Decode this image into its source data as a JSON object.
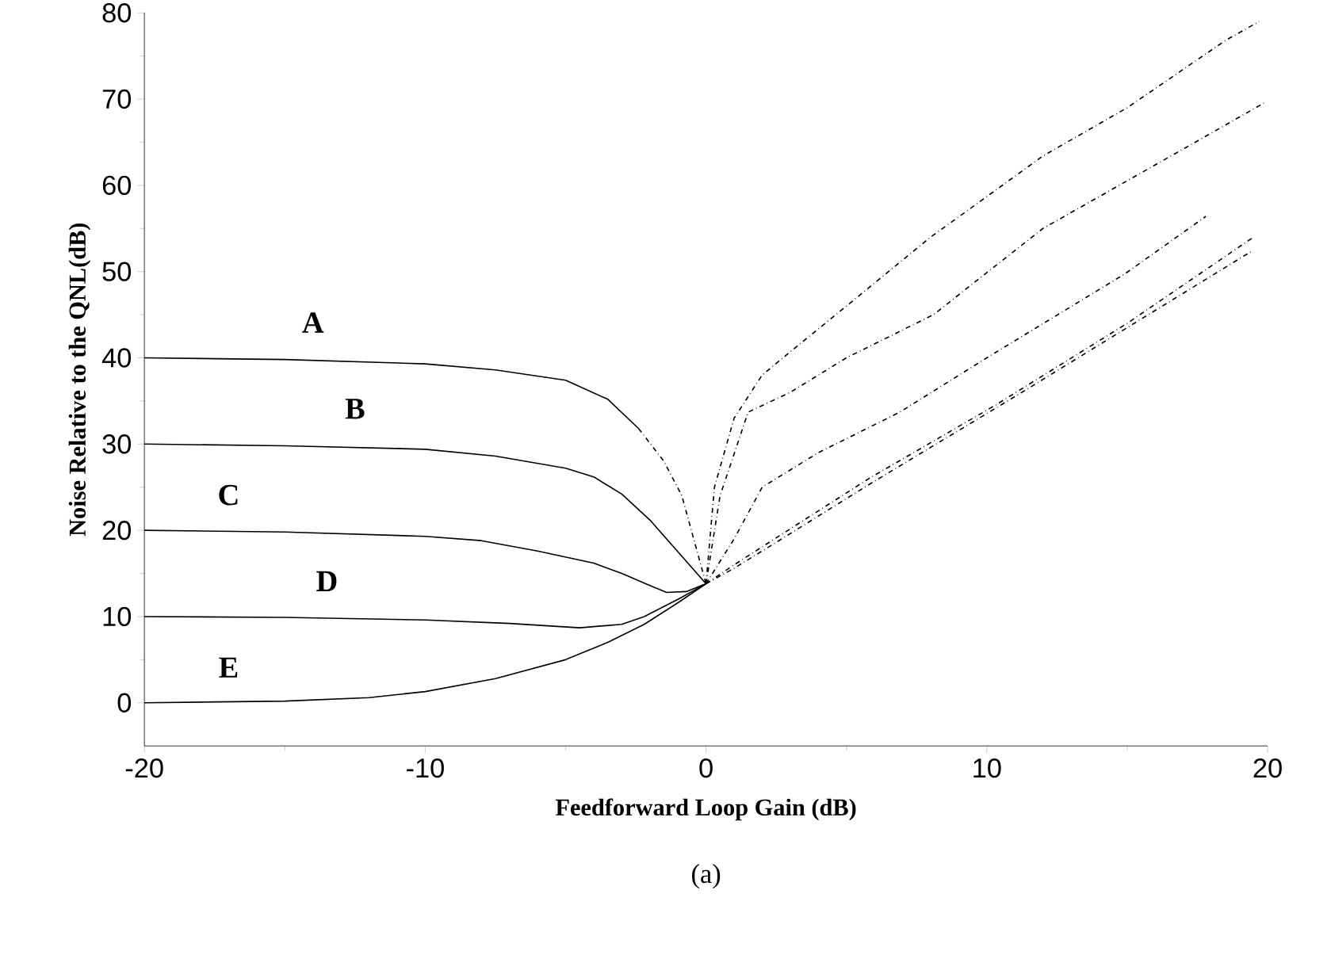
{
  "chart_data": {
    "type": "line",
    "xlabel": "Feedforward Loop Gain (dB)",
    "ylabel": "Noise Relative to the QNL(dB)",
    "annotations": [
      "(a)"
    ],
    "xlim": [
      -20,
      20
    ],
    "ylim": [
      -5,
      80
    ],
    "xticks": [
      -20,
      -10,
      0,
      10,
      20
    ],
    "yticks": [
      0,
      10,
      20,
      30,
      40,
      50,
      60,
      70,
      80
    ],
    "grid": false,
    "marker": "none",
    "series": [
      {
        "name": "A",
        "color": "#000000",
        "line_style": "solid",
        "x": [
          -20,
          -15,
          -10,
          -7.5,
          -5,
          -3.5,
          -2.4
        ],
        "values": [
          40,
          39.8,
          39.3,
          38.6,
          37.4,
          35.2,
          31.8
        ]
      },
      {
        "name": "B",
        "color": "#000000",
        "line_style": "solid",
        "x": [
          -20,
          -15,
          -10,
          -7.5,
          -5,
          -4,
          -3,
          -2,
          -1,
          0
        ],
        "values": [
          30,
          29.8,
          29.4,
          28.6,
          27.2,
          26.2,
          24.2,
          21.2,
          17.5,
          13.8
        ]
      },
      {
        "name": "C",
        "color": "#000000",
        "line_style": "solid",
        "x": [
          -20,
          -15,
          -10,
          -8,
          -6,
          -4,
          -3,
          -2,
          -1.4,
          -0.7,
          0
        ],
        "values": [
          20,
          19.8,
          19.3,
          18.8,
          17.6,
          16.2,
          15,
          13.6,
          12.8,
          12.9,
          13.8
        ]
      },
      {
        "name": "D",
        "color": "#000000",
        "line_style": "solid",
        "x": [
          -20,
          -15,
          -10,
          -7,
          -4.5,
          -3,
          -2.2,
          -1,
          0
        ],
        "values": [
          10,
          9.9,
          9.6,
          9.2,
          8.7,
          9.1,
          10,
          12,
          13.8
        ]
      },
      {
        "name": "E",
        "color": "#000000",
        "line_style": "solid",
        "x": [
          -20,
          -15,
          -12,
          -10,
          -7.5,
          -5,
          -3.5,
          -2.2,
          -1,
          0
        ],
        "values": [
          0,
          0.2,
          0.6,
          1.3,
          2.8,
          5,
          7,
          9.1,
          11.6,
          13.8
        ]
      },
      {
        "color": "#000000",
        "line_style": "dashed",
        "x": [
          0,
          0.3,
          1,
          2,
          3,
          5,
          8,
          12,
          15,
          18.5,
          19.7
        ],
        "values": [
          13.8,
          25,
          33,
          38,
          40.7,
          46,
          54,
          63.4,
          69,
          76.8,
          79
        ]
      },
      {
        "color": "#000000",
        "line_style": "dashed",
        "x": [
          0,
          0.5,
          1.5,
          3,
          5,
          8.1,
          12,
          17.1,
          19.9
        ],
        "values": [
          13.8,
          24,
          33.7,
          36,
          40,
          45,
          55,
          64.4,
          69.6
        ]
      },
      {
        "color": "#000000",
        "line_style": "dashed",
        "x": [
          0,
          1,
          2,
          4,
          6.9,
          10,
          14.9,
          17.8
        ],
        "values": [
          13.8,
          19,
          25,
          29,
          33.7,
          40,
          49.7,
          56.4
        ]
      },
      {
        "color": "#000000",
        "line_style": "dashed",
        "x": [
          0,
          1,
          2.2,
          5.8,
          10.3,
          15,
          19.5
        ],
        "values": [
          13.8,
          16,
          18.5,
          26,
          34.5,
          44,
          54
        ]
      },
      {
        "color": "#000000",
        "line_style": "dashed",
        "x": [
          0,
          1,
          2.2,
          5.8,
          11.1,
          15,
          19.4
        ],
        "values": [
          13.8,
          15.6,
          18,
          25.3,
          35.7,
          43.5,
          52.3
        ]
      },
      {
        "color": "#000000",
        "line_style": "dashed",
        "x": [
          -2.4,
          -1.5,
          -0.86,
          0
        ],
        "values": [
          31.8,
          28,
          24,
          13.8
        ]
      }
    ]
  }
}
